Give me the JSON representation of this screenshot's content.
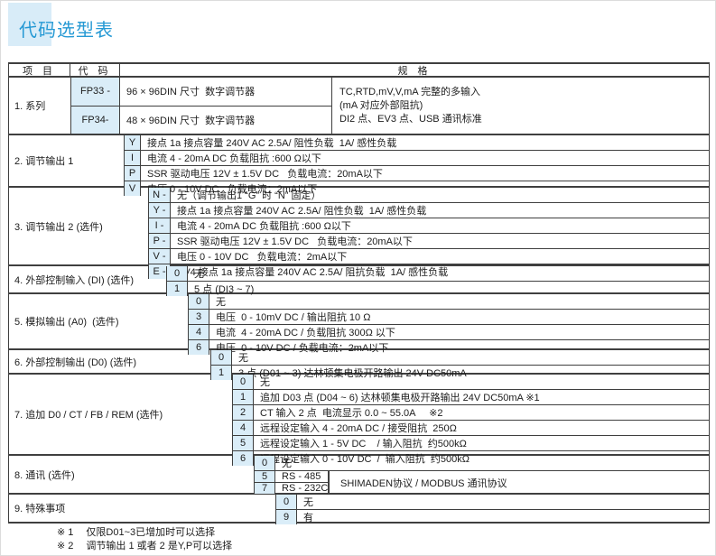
{
  "page": {
    "title": "代码选型表"
  },
  "colors": {
    "accent": "#2599d4",
    "title_highlight": "#d8ecf8",
    "code_cell_bg": "#daedf8",
    "table_border": "#3f3f3f"
  },
  "table": {
    "headers": {
      "item": "项  目",
      "code": "代 码",
      "spec": "规  格"
    },
    "series": {
      "label": "1. 系列",
      "rows": [
        {
          "code": "FP33 -",
          "spec": "96 × 96DIN 尺寸  数字调节器"
        },
        {
          "code": "FP34-",
          "spec": "48 × 96DIN 尺寸  数字调节器"
        }
      ],
      "common_spec": [
        "TC,RTD,mV,V,mA 完整的多输入",
        "(mA 对应外部阻抗)",
        "DI2 点、EV3 点、USB 通讯标准"
      ]
    },
    "groups": [
      {
        "label": "2. 调节输出 1",
        "rows": [
          {
            "code": "Y",
            "spec": "接点 1a 接点容量 240V AC 2.5A/ 阻性负载  1A/ 感性负载"
          },
          {
            "code": "I",
            "spec": "电流 4 - 20mA DC 负载阻抗 :600 Ω以下"
          },
          {
            "code": "P",
            "spec": "SSR 驱动电压 12V ± 1.5V DC   负载电流：20mA以下"
          },
          {
            "code": "V",
            "spec": "电压 0 - 10V DC   负载电流：2mA以下"
          }
        ]
      },
      {
        "label": "3. 调节输出 2 (选件)",
        "rows": [
          {
            "code": "N -",
            "spec": "无（调节输出1 “G” 时 “N” 固定）"
          },
          {
            "code": "Y -",
            "spec": "接点 1a 接点容量 240V AC 2.5A/ 阻性负载  1A/ 感性负载"
          },
          {
            "code": "I -",
            "spec": "电流 4 - 20mA DC 负载阻抗 :600 Ω以下"
          },
          {
            "code": "P -",
            "spec": "SSR 驱动电压 12V ± 1.5V DC   负载电流：20mA以下"
          },
          {
            "code": "V -",
            "spec": "电压 0 - 10V DC   负载电流：2mA以下"
          },
          {
            "code": "E -",
            "spec": "EV4 接点 1a 接点容量 240V AC 2.5A/ 阻抗负载  1A/ 感性负载"
          }
        ]
      },
      {
        "label": "4. 外部控制输入 (DI) (选件)",
        "rows": [
          {
            "code": "0",
            "spec": "无"
          },
          {
            "code": "1",
            "spec": "5 点 (DI3 ~ 7)"
          }
        ]
      },
      {
        "label": "5. 模拟输出 (A0)  (选件)",
        "rows": [
          {
            "code": "0",
            "spec": "无"
          },
          {
            "code": "3",
            "spec": "电压  0 - 10mV DC / 输出阻抗 10 Ω"
          },
          {
            "code": "4",
            "spec": "电流  4 - 20mA DC / 负载阻抗 300Ω 以下"
          },
          {
            "code": "6",
            "spec": "电压  0 - 10V DC / 负载电流：2mA以下"
          }
        ]
      },
      {
        "label": "6. 外部控制输出 (D0) (选件)",
        "rows": [
          {
            "code": "0",
            "spec": "无"
          },
          {
            "code": "1",
            "spec": "3 点 (D01 ~ 3) 达林顿集电极开路输出 24V DC50mA"
          }
        ]
      },
      {
        "label": "7. 追加 D0 / CT / FB / REM (选件)",
        "rows": [
          {
            "code": "0",
            "spec": "无"
          },
          {
            "code": "1",
            "spec": "追加 D03 点 (D04 ~ 6) 达林顿集电极开路输出 24V DC50mA ※1"
          },
          {
            "code": "2",
            "spec": "CT 输入 2 点  电流显示 0.0 ~ 55.0A     ※2"
          },
          {
            "code": "4",
            "spec": "远程设定输入 4 - 20mA DC / 接受阻抗  250Ω"
          },
          {
            "code": "5",
            "spec": "远程设定输入 1 - 5V DC    / 输入阻抗  约500kΩ"
          },
          {
            "code": "6",
            "spec": "远程设定输入 0 - 10V DC  /  输入阻抗  约500kΩ"
          }
        ]
      },
      {
        "label": "8. 通讯 (选件)",
        "rows": [
          {
            "code": "0",
            "spec": "无"
          },
          {
            "code": "5",
            "spec": "RS - 485"
          },
          {
            "code": "7",
            "spec": "RS - 232C"
          }
        ],
        "merged_note": "SHIMADEN协议 / MODBUS 通讯协议"
      },
      {
        "label": "9. 特殊事项",
        "rows": [
          {
            "code": "0",
            "spec": "无"
          },
          {
            "code": "9",
            "spec": "有"
          }
        ]
      }
    ]
  },
  "footnotes": [
    {
      "marker": "※ 1",
      "text": "仅限D01~3已增加时可以选择"
    },
    {
      "marker": "※ 2",
      "text": "调节输出 1 或者 2 是Y,P可以选择"
    }
  ]
}
